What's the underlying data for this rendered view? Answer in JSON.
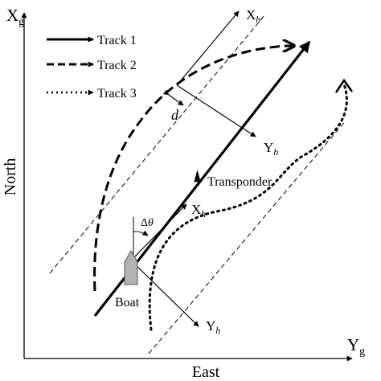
{
  "axes": {
    "y_axis_letter": "X",
    "y_axis_sub": "g",
    "x_axis_letter": "Y",
    "x_axis_sub": "g",
    "ylabel": "North",
    "xlabel": "East"
  },
  "legend": [
    {
      "label": "Track 1",
      "style": "solid"
    },
    {
      "label": "Track 2",
      "style": "dashed"
    },
    {
      "label": "Track 3",
      "style": "dotted"
    }
  ],
  "frames": {
    "x_letter": "X",
    "y_letter": "Y",
    "sub": "h"
  },
  "annotations": {
    "distance": "d",
    "angle_delta": "Δ",
    "angle_theta": "θ",
    "transponder": "Transponder",
    "boat": "Boat"
  },
  "colors": {
    "ink": "#000000",
    "boat": "#b3b3b3"
  }
}
